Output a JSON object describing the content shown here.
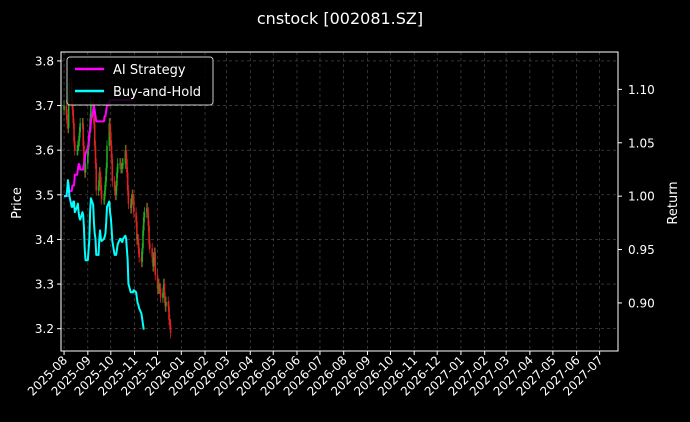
{
  "chart_data": {
    "type": "line",
    "title": "cnstock [002081.SZ]",
    "ylabel_left": "Price",
    "ylabel_right": "Return",
    "x_ticks": [
      "2025-08",
      "2025-09",
      "2025-10",
      "2025-11",
      "2025-12",
      "2026-01",
      "2026-02",
      "2026-03",
      "2026-04",
      "2026-05",
      "2026-06",
      "2026-07",
      "2026-08",
      "2026-09",
      "2026-10",
      "2026-11",
      "2026-12",
      "2027-01",
      "2027-02",
      "2027-03",
      "2027-04",
      "2027-05",
      "2027-06",
      "2027-07"
    ],
    "xlim": [
      "2025-07-28",
      "2027-07-25"
    ],
    "ylim_left": [
      3.15,
      3.82
    ],
    "yticks_left": [
      "3.2",
      "3.3",
      "3.4",
      "3.5",
      "3.6",
      "3.7",
      "3.8"
    ],
    "ylim_right": [
      0.855,
      1.135
    ],
    "yticks_right": [
      "0.90",
      "0.95",
      "1.00",
      "1.05",
      "1.10"
    ],
    "grid": true,
    "legend_position": "top-left",
    "colors": {
      "background": "#000000",
      "up": "#22aa22",
      "down": "#dd2222",
      "ai": "#ff00ff",
      "bh": "#00ffff",
      "grid": "#555555"
    },
    "candles": {
      "start": "2025-08-01",
      "open": [
        3.69,
        3.7,
        3.68,
        3.66,
        3.65,
        3.72,
        3.75,
        3.71,
        3.69,
        3.66,
        3.62,
        3.6,
        3.6,
        3.61,
        3.62,
        3.64,
        3.66,
        3.66,
        3.61,
        3.57,
        3.55,
        3.57,
        3.6,
        3.62,
        3.64,
        3.67,
        3.71,
        3.69,
        3.66,
        3.61,
        3.57,
        3.51,
        3.52,
        3.55,
        3.54,
        3.51,
        3.49,
        3.49,
        3.51,
        3.53,
        3.56,
        3.61,
        3.66,
        3.64,
        3.61,
        3.58,
        3.53,
        3.51,
        3.5,
        3.52,
        3.55,
        3.57,
        3.57,
        3.56,
        3.56,
        3.57,
        3.57,
        3.6,
        3.58,
        3.55,
        3.51,
        3.48,
        3.47,
        3.49,
        3.5,
        3.49,
        3.46,
        3.44,
        3.4,
        3.4,
        3.38,
        3.36,
        3.35,
        3.38,
        3.42,
        3.45,
        3.46,
        3.47,
        3.46,
        3.43,
        3.39,
        3.38,
        3.36,
        3.34,
        3.36,
        3.37,
        3.32,
        3.29,
        3.3,
        3.29,
        3.29,
        3.27,
        3.28,
        3.3,
        3.27,
        3.25,
        3.26,
        3.25,
        3.22,
        3.21
      ],
      "close": [
        3.7,
        3.68,
        3.66,
        3.65,
        3.72,
        3.75,
        3.71,
        3.69,
        3.66,
        3.62,
        3.6,
        3.6,
        3.61,
        3.62,
        3.64,
        3.66,
        3.66,
        3.61,
        3.57,
        3.55,
        3.57,
        3.6,
        3.62,
        3.64,
        3.67,
        3.71,
        3.69,
        3.66,
        3.61,
        3.57,
        3.51,
        3.52,
        3.55,
        3.54,
        3.51,
        3.49,
        3.49,
        3.51,
        3.53,
        3.56,
        3.61,
        3.66,
        3.64,
        3.61,
        3.58,
        3.53,
        3.51,
        3.5,
        3.52,
        3.55,
        3.57,
        3.57,
        3.56,
        3.56,
        3.57,
        3.57,
        3.6,
        3.58,
        3.55,
        3.51,
        3.48,
        3.47,
        3.49,
        3.5,
        3.49,
        3.46,
        3.44,
        3.4,
        3.4,
        3.38,
        3.36,
        3.35,
        3.38,
        3.42,
        3.45,
        3.46,
        3.47,
        3.46,
        3.43,
        3.39,
        3.38,
        3.36,
        3.34,
        3.36,
        3.37,
        3.32,
        3.29,
        3.3,
        3.29,
        3.29,
        3.27,
        3.28,
        3.3,
        3.27,
        3.25,
        3.26,
        3.25,
        3.22,
        3.21,
        3.19
      ]
    },
    "series": [
      {
        "name": "AI Strategy",
        "values": [
          1.0,
          1.0,
          1.0,
          1.0,
          1.0,
          1.005,
          1.005,
          1.01,
          1.01,
          1.01,
          1.02,
          1.02,
          1.025,
          1.03,
          1.03,
          1.025,
          1.025,
          1.025,
          1.03,
          1.035,
          1.04,
          1.045,
          1.05,
          1.06,
          1.06,
          1.07,
          1.08,
          1.085,
          1.08,
          1.075,
          1.07,
          1.07,
          1.07,
          1.07,
          1.07,
          1.07,
          1.07,
          1.075,
          1.075,
          1.08,
          1.085,
          1.085,
          1.09,
          1.09,
          1.09,
          1.09,
          1.09,
          1.09,
          1.09,
          1.09,
          1.09,
          1.09,
          1.09,
          1.09,
          1.09,
          1.09,
          1.09,
          1.09,
          1.09,
          1.09,
          1.09,
          1.09,
          1.09,
          1.09,
          1.09
        ]
      },
      {
        "name": "Buy-and-Hold",
        "values": [
          1.0,
          1.0,
          1.005,
          1.015,
          1.01,
          1.0,
          0.99,
          0.99,
          0.995,
          0.995,
          0.985,
          0.99,
          0.993,
          0.985,
          0.98,
          0.978,
          0.985,
          0.982,
          0.97,
          0.95,
          0.94,
          0.94,
          0.95,
          0.96,
          0.985,
          0.998,
          0.992,
          0.975,
          0.965,
          0.96,
          0.945,
          0.945,
          0.96,
          0.968,
          0.96,
          0.958,
          0.96,
          0.962,
          0.965,
          0.975,
          0.99,
          0.995,
          0.985,
          0.98,
          0.97,
          0.958,
          0.945,
          0.945,
          0.945,
          0.95,
          0.955,
          0.96,
          0.96,
          0.958,
          0.957,
          0.96,
          0.963,
          0.96,
          0.95,
          0.94,
          0.918,
          0.91,
          0.91,
          0.91,
          0.91,
          0.912,
          0.91,
          0.905,
          0.9,
          0.898,
          0.895,
          0.89,
          0.885,
          0.88,
          0.875
        ]
      }
    ]
  }
}
